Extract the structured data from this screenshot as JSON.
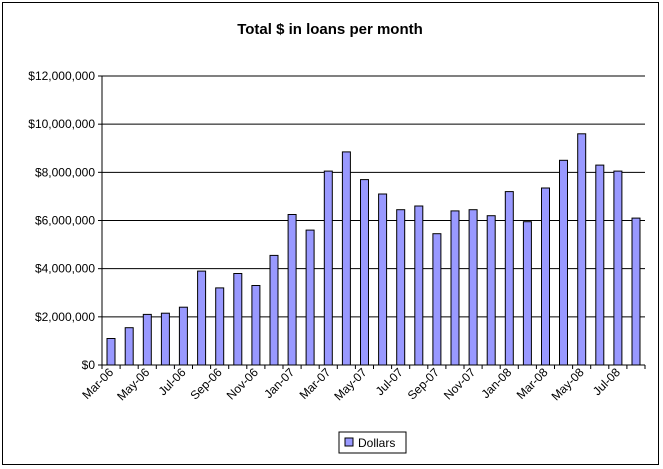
{
  "chart_data": {
    "type": "bar",
    "title": "Total $ in loans per month",
    "xlabel": "",
    "ylabel": "",
    "ylim": [
      0,
      12000000
    ],
    "yticks": [
      "$0",
      "$2,000,000",
      "$4,000,000",
      "$6,000,000",
      "$8,000,000",
      "$10,000,000",
      "$12,000,000"
    ],
    "grid": true,
    "legend_position": "bottom",
    "bar_color": "#9999ff",
    "categories": [
      "Mar-06",
      "Apr-06",
      "May-06",
      "Jun-06",
      "Jul-06",
      "Aug-06",
      "Sep-06",
      "Oct-06",
      "Nov-06",
      "Dec-06",
      "Jan-07",
      "Feb-07",
      "Mar-07",
      "Apr-07",
      "May-07",
      "Jun-07",
      "Jul-07",
      "Aug-07",
      "Sep-07",
      "Oct-07",
      "Nov-07",
      "Dec-07",
      "Jan-08",
      "Feb-08",
      "Mar-08",
      "Apr-08",
      "May-08",
      "Jun-08",
      "Jul-08",
      "Aug-08"
    ],
    "tick_labels": [
      "Mar-06",
      "May-06",
      "Jul-06",
      "Sep-06",
      "Nov-06",
      "Jan-07",
      "Mar-07",
      "May-07",
      "Jul-07",
      "Sep-07",
      "Nov-07",
      "Jan-08",
      "Mar-08",
      "May-08",
      "Jul-08"
    ],
    "series": [
      {
        "name": "Dollars",
        "values": [
          1100000,
          1550000,
          2100000,
          2150000,
          2400000,
          3900000,
          3200000,
          3800000,
          3300000,
          4550000,
          6250000,
          5600000,
          8050000,
          8850000,
          7700000,
          7100000,
          6450000,
          6600000,
          5450000,
          6400000,
          6450000,
          6200000,
          7200000,
          5950000,
          7350000,
          8500000,
          9600000,
          8300000,
          8050000,
          6100000
        ]
      }
    ]
  }
}
